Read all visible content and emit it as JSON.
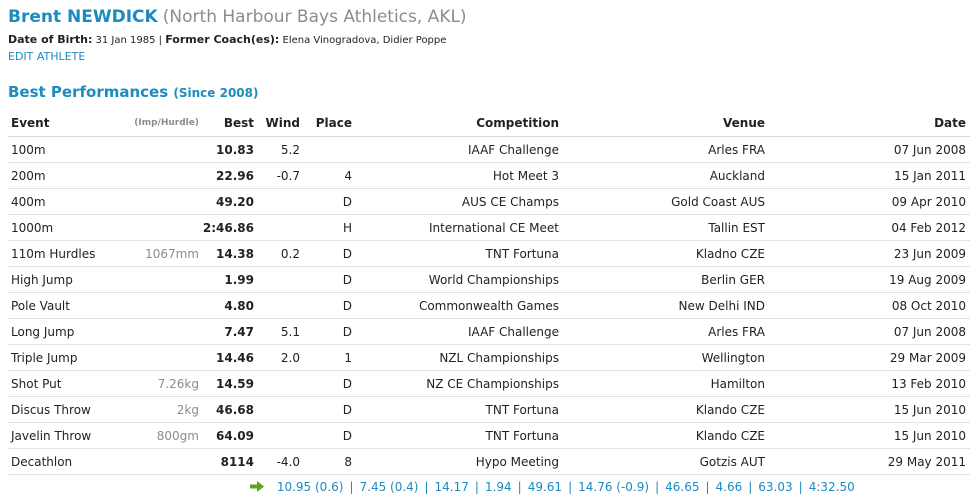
{
  "athlete": {
    "name": "Brent NEWDICK",
    "club": "(North Harbour Bays Athletics, AKL)",
    "dob_label": "Date of Birth:",
    "dob": "31 Jan 1985",
    "separator": "|",
    "coach_label": "Former Coach(es):",
    "coaches": "Elena Vinogradova, Didier Poppe",
    "edit_label": "EDIT ATHLETE"
  },
  "section": {
    "title": "Best Performances",
    "subtitle": "(Since 2008)"
  },
  "table": {
    "headers": {
      "event": "Event",
      "imp": "(Imp/Hurdle)",
      "best": "Best",
      "wind": "Wind",
      "place": "Place",
      "competition": "Competition",
      "venue": "Venue",
      "date": "Date"
    },
    "rows": [
      {
        "event": "100m",
        "imp": "",
        "best": "10.83",
        "wind": "5.2",
        "place": "",
        "competition": "IAAF Challenge",
        "venue": "Arles FRA",
        "date": "07 Jun 2008"
      },
      {
        "event": "200m",
        "imp": "",
        "best": "22.96",
        "wind": "-0.7",
        "place": "4",
        "competition": "Hot Meet 3",
        "venue": "Auckland",
        "date": "15 Jan 2011"
      },
      {
        "event": "400m",
        "imp": "",
        "best": "49.20",
        "wind": "",
        "place": "D",
        "competition": "AUS CE Champs",
        "venue": "Gold Coast AUS",
        "date": "09 Apr 2010"
      },
      {
        "event": "1000m",
        "imp": "",
        "best": "2:46.86",
        "wind": "",
        "place": "H",
        "competition": "International CE Meet",
        "venue": "Tallin EST",
        "date": "04 Feb 2012"
      },
      {
        "event": "110m Hurdles",
        "imp": "1067mm",
        "best": "14.38",
        "wind": "0.2",
        "place": "D",
        "competition": "TNT Fortuna",
        "venue": "Kladno CZE",
        "date": "23 Jun 2009"
      },
      {
        "event": "High Jump",
        "imp": "",
        "best": "1.99",
        "wind": "",
        "place": "D",
        "competition": "World Championships",
        "venue": "Berlin GER",
        "date": "19 Aug 2009"
      },
      {
        "event": "Pole Vault",
        "imp": "",
        "best": "4.80",
        "wind": "",
        "place": "D",
        "competition": "Commonwealth Games",
        "venue": "New Delhi IND",
        "date": "08 Oct 2010"
      },
      {
        "event": "Long Jump",
        "imp": "",
        "best": "7.47",
        "wind": "5.1",
        "place": "D",
        "competition": "IAAF Challenge",
        "venue": "Arles FRA",
        "date": "07 Jun 2008"
      },
      {
        "event": "Triple Jump",
        "imp": "",
        "best": "14.46",
        "wind": "2.0",
        "place": "1",
        "competition": "NZL Championships",
        "venue": "Wellington",
        "date": "29 Mar 2009"
      },
      {
        "event": "Shot Put",
        "imp": "7.26kg",
        "best": "14.59",
        "wind": "",
        "place": "D",
        "competition": "NZ CE Championships",
        "venue": "Hamilton",
        "date": "13 Feb 2010"
      },
      {
        "event": "Discus Throw",
        "imp": "2kg",
        "best": "46.68",
        "wind": "",
        "place": "D",
        "competition": "TNT Fortuna",
        "venue": "Klando CZE",
        "date": "15 Jun 2010"
      },
      {
        "event": "Javelin Throw",
        "imp": "800gm",
        "best": "64.09",
        "wind": "",
        "place": "D",
        "competition": "TNT Fortuna",
        "venue": "Klando CZE",
        "date": "15 Jun 2010"
      },
      {
        "event": "Decathlon",
        "imp": "",
        "best": "8114",
        "wind": "-4.0",
        "place": "8",
        "competition": "Hypo Meeting",
        "venue": "Gotzis AUT",
        "date": "29 May 2011"
      }
    ]
  },
  "decathlon_breakdown": {
    "icon": "arrow-right-icon",
    "separator": "|",
    "values": [
      "10.95 (0.6)",
      "7.45 (0.4)",
      "14.17",
      "1.94",
      "49.61",
      "14.76 (-0.9)",
      "46.65",
      "4.66",
      "63.03",
      "4:32.50"
    ]
  },
  "colors": {
    "accent": "#1b8bc0",
    "muted": "#8c8c8c",
    "arrow": "#5aa51e"
  }
}
